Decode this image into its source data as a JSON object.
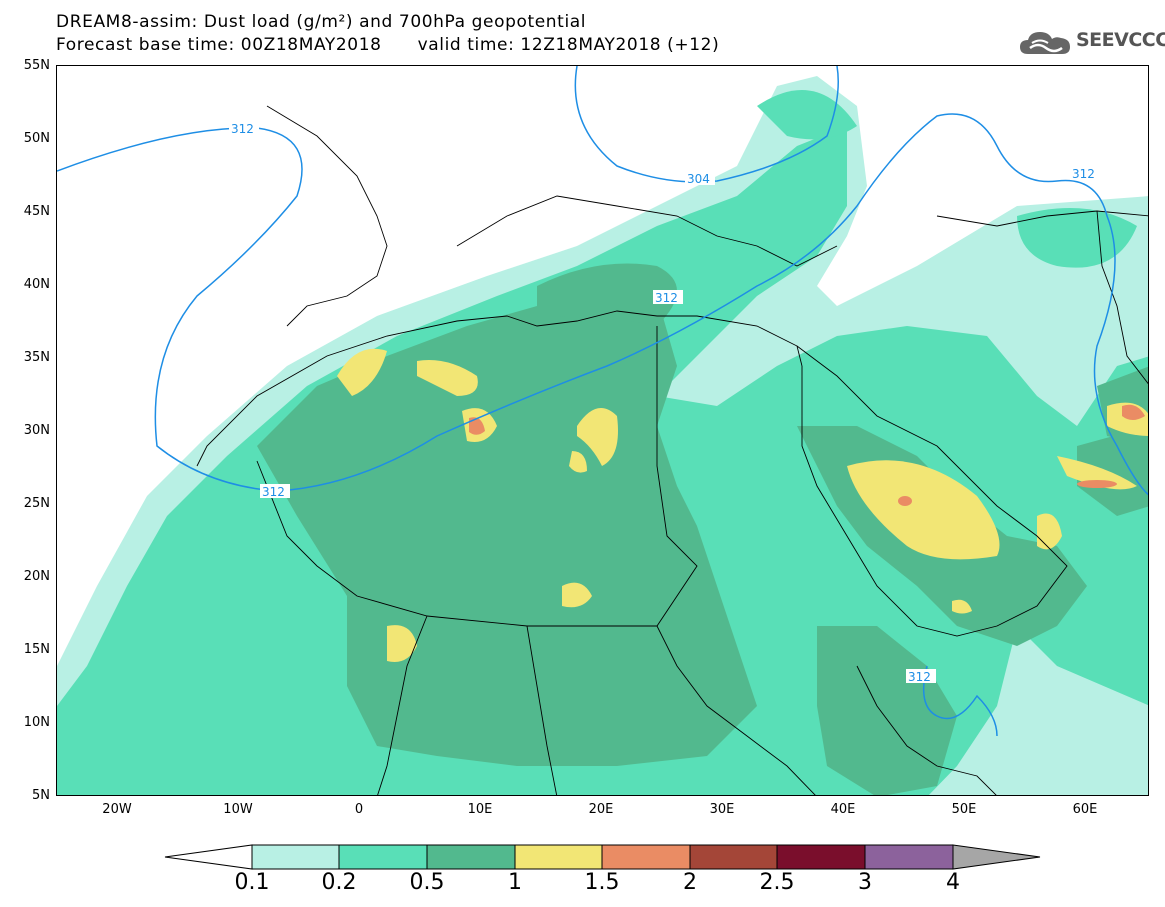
{
  "title": {
    "line1": "DREAM8-assim: Dust load (g/m²) and 700hPa geopotential",
    "line2": "Forecast base time: 00Z18MAY2018      valid time: 12Z18MAY2018 (+12)"
  },
  "logo": {
    "text": "SEEVCCC",
    "icon": "cloud-icon"
  },
  "axes": {
    "lat_labels": [
      "55N",
      "50N",
      "45N",
      "40N",
      "35N",
      "30N",
      "25N",
      "20N",
      "15N",
      "10N",
      "5N"
    ],
    "lon_labels": [
      "20W",
      "10W",
      "0",
      "10E",
      "20E",
      "30E",
      "40E",
      "50E",
      "60E"
    ]
  },
  "contours": [
    {
      "label": "312"
    },
    {
      "label": "312"
    },
    {
      "label": "304"
    },
    {
      "label": "312"
    },
    {
      "label": "312"
    },
    {
      "label": "312"
    }
  ],
  "colorbar": {
    "levels": [
      "0.1",
      "0.2",
      "0.5",
      "1",
      "1.5",
      "2",
      "2.5",
      "3",
      "4"
    ],
    "colors": [
      "#b8f0e4",
      "#59dfb7",
      "#52b98e",
      "#f2e675",
      "#ea8c64",
      "#a44638",
      "#7a0e2c",
      "#8c629c",
      "#a6a6a6"
    ]
  }
}
